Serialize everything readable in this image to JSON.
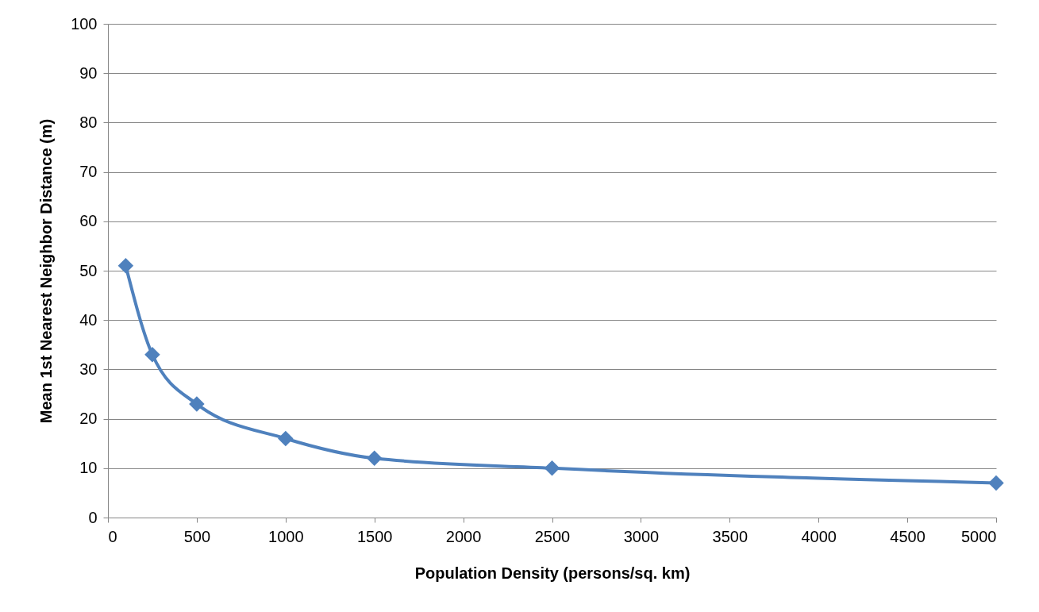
{
  "chart_data": {
    "type": "line",
    "xlabel": "Population Density (persons/sq. km)",
    "ylabel": "Mean 1st Nearest Neighbor Distance (m)",
    "series": [
      {
        "color": "#4f81bd",
        "x": [
          100,
          250,
          500,
          1000,
          1500,
          2500,
          5000
        ],
        "values": [
          51,
          33,
          23,
          16,
          12,
          10,
          7
        ]
      }
    ],
    "xlim": [
      0,
      5000
    ],
    "xticks": [
      0,
      500,
      1000,
      1500,
      2000,
      2500,
      3000,
      3500,
      4000,
      4500,
      5000
    ],
    "ylim": [
      0,
      100
    ],
    "yticks": [
      0,
      10,
      20,
      30,
      40,
      50,
      60,
      70,
      80,
      90,
      100
    ],
    "grid": "y",
    "marker": "diamond",
    "line_style": "solid"
  }
}
